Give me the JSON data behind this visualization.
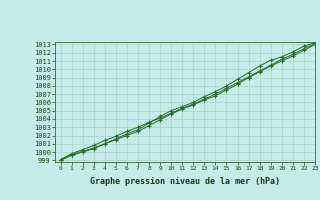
{
  "title": "Graphe pression niveau de la mer (hPa)",
  "background_color": "#c5ece6",
  "grid_color": "#aad4cc",
  "line_color": "#2d6e2d",
  "xlim": [
    -0.5,
    23
  ],
  "ylim": [
    998.8,
    1013.3
  ],
  "xticks": [
    0,
    1,
    2,
    3,
    4,
    5,
    6,
    7,
    8,
    9,
    10,
    11,
    12,
    13,
    14,
    15,
    16,
    17,
    18,
    19,
    20,
    21,
    22,
    23
  ],
  "yticks": [
    999,
    1000,
    1001,
    1002,
    1003,
    1004,
    1005,
    1006,
    1007,
    1008,
    1009,
    1010,
    1011,
    1012,
    1013
  ],
  "series": [
    [
      999.0,
      999.7,
      1000.1,
      1000.5,
      1001.0,
      1001.6,
      1002.2,
      1002.7,
      1003.5,
      1004.3,
      1005.0,
      1005.5,
      1006.0,
      1006.7,
      1007.3,
      1008.0,
      1008.8,
      1009.6,
      1010.4,
      1011.1,
      1011.5,
      1012.1,
      1012.8,
      1013.2
    ],
    [
      999.0,
      999.6,
      1000.0,
      1000.4,
      1001.0,
      1001.5,
      1002.0,
      1002.5,
      1003.2,
      1003.9,
      1004.6,
      1005.2,
      1005.7,
      1006.3,
      1006.8,
      1007.5,
      1008.2,
      1009.0,
      1009.7,
      1010.4,
      1011.0,
      1011.6,
      1012.3,
      1013.0
    ],
    [
      999.1,
      999.8,
      1000.3,
      1000.8,
      1001.4,
      1001.9,
      1002.5,
      1003.0,
      1003.6,
      1004.1,
      1004.7,
      1005.3,
      1005.8,
      1006.4,
      1007.0,
      1007.7,
      1008.4,
      1009.1,
      1009.8,
      1010.5,
      1011.2,
      1011.8,
      1012.5,
      1013.1
    ]
  ]
}
